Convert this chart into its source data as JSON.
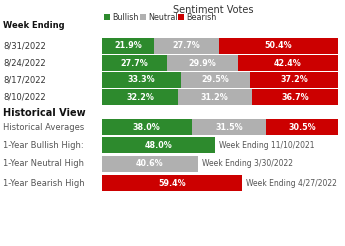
{
  "title": "Sentiment Votes",
  "legend": [
    "Bullish",
    "Neutral",
    "Bearish"
  ],
  "colors": {
    "bullish": "#2d8a2d",
    "neutral": "#b0b0b0",
    "bearish": "#cc0000"
  },
  "week_ending_label": "Week Ending",
  "weekly_rows": [
    {
      "label": "8/31/2022",
      "bullish": 21.9,
      "neutral": 27.7,
      "bearish": 50.4
    },
    {
      "label": "8/24/2022",
      "bullish": 27.7,
      "neutral": 29.9,
      "bearish": 42.4
    },
    {
      "label": "8/17/2022",
      "bullish": 33.3,
      "neutral": 29.5,
      "bearish": 37.2
    },
    {
      "label": "8/10/2022",
      "bullish": 32.2,
      "neutral": 31.2,
      "bearish": 36.7
    }
  ],
  "historical_label": "Historical View",
  "historical_rows": [
    {
      "label": "Historical Averages",
      "bullish": 38.0,
      "neutral": 31.5,
      "bearish": 30.5,
      "type": "full"
    },
    {
      "label": "1-Year Bullish High:",
      "value": 48.0,
      "color": "bullish",
      "note": "Week Ending 11/10/2021",
      "type": "single"
    },
    {
      "label": "1-Year Neutral High",
      "value": 40.6,
      "color": "neutral",
      "note": "Week Ending 3/30/2022",
      "type": "single"
    },
    {
      "label": "1-Year Bearish High",
      "value": 59.4,
      "color": "bearish",
      "note": "Week Ending 4/27/2022",
      "type": "single"
    }
  ],
  "bg_color": "#ffffff",
  "label_font_size": 6.0,
  "bar_font_size": 5.8,
  "note_font_size": 5.5,
  "header_font_size": 7.0,
  "section_font_size": 7.0
}
